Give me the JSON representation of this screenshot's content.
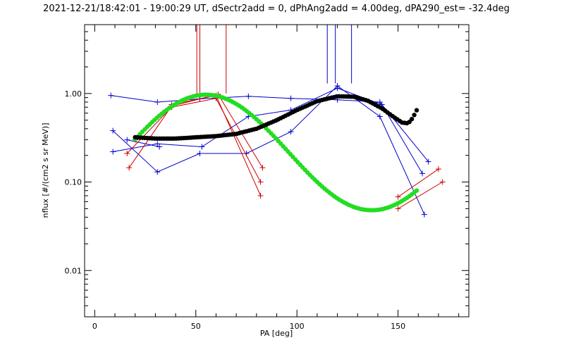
{
  "chart_data": {
    "type": "scatter",
    "title": "2021-12-21/18:42:01 - 19:00:29 UT, dSectr2add = 0, dPhAng2add = 4.00deg, dPA290_est= -32.4deg",
    "xlabel": "PA [deg]",
    "ylabel": "nflux [#/(cm2 s sr MeV)]",
    "xlim": [
      -5,
      185
    ],
    "ylim": [
      0.003,
      6
    ],
    "y_scale": "log",
    "x_ticks": [
      0,
      50,
      100,
      150
    ],
    "x_tick_labels": [
      "0",
      "50",
      "100",
      "150"
    ],
    "y_ticks": [
      0.01,
      0.1,
      1.0
    ],
    "y_tick_labels": [
      "0.01",
      "0.10",
      "1.00"
    ],
    "grid": false,
    "colors": {
      "blue": "#0000cc",
      "red": "#cc0000",
      "green": "#22dd22",
      "black": "#000000"
    },
    "series": [
      {
        "color": "blue",
        "marker": "plus",
        "segments": [
          [
            [
              8,
              0.95
            ],
            [
              31,
              0.8
            ],
            [
              52,
              0.87
            ],
            [
              76,
              0.93
            ],
            [
              97,
              0.88
            ],
            [
              120,
              0.85
            ],
            [
              141,
              0.8
            ],
            [
              165,
              0.17
            ]
          ],
          [
            [
              9,
              0.38
            ],
            [
              31,
              0.13
            ],
            [
              52,
              0.21
            ],
            [
              75,
              0.21
            ],
            [
              97,
              0.37
            ],
            [
              120,
              1.22
            ],
            [
              141,
              0.55
            ],
            [
              163,
              0.043
            ]
          ],
          [
            [
              9,
              0.22
            ],
            [
              31,
              0.27
            ],
            [
              53,
              0.25
            ],
            [
              76,
              0.55
            ],
            [
              97,
              0.65
            ],
            [
              120,
              1.15
            ],
            [
              142,
              0.75
            ],
            [
              162,
              0.125
            ]
          ],
          [
            [
              16,
              0.3
            ],
            [
              32,
              0.25
            ]
          ]
        ]
      },
      {
        "color": "red",
        "marker": "plus",
        "segments": [
          [
            [
              17,
              0.145
            ],
            [
              38,
              0.72
            ],
            [
              61,
              0.98
            ],
            [
              83,
              0.145
            ]
          ],
          [
            [
              16,
              0.21
            ],
            [
              38,
              0.7
            ],
            [
              60,
              0.88
            ],
            [
              82,
              0.1
            ]
          ],
          [
            [
              20,
              0.3
            ],
            [
              38,
              0.75
            ],
            [
              60,
              0.95
            ],
            [
              82,
              0.07
            ]
          ],
          [
            [
              150,
              0.068
            ],
            [
              170,
              0.14
            ]
          ],
          [
            [
              150,
              0.05
            ],
            [
              172,
              0.1
            ]
          ]
        ]
      },
      {
        "color": "vertical-lines",
        "lines": [
          {
            "x": 50.5,
            "color": "red"
          },
          {
            "x": 52,
            "color": "red"
          },
          {
            "x": 65,
            "color": "red"
          },
          {
            "x": 115,
            "color": "blue"
          },
          {
            "x": 119,
            "color": "blue"
          },
          {
            "x": 127,
            "color": "blue"
          }
        ]
      },
      {
        "color": "green",
        "marker": "dot",
        "curve": "sine_fit",
        "x_range": [
          20,
          160
        ],
        "peak": {
          "x": 55,
          "y": 0.97
        },
        "trough": {
          "x": 137,
          "y": 0.048
        }
      },
      {
        "color": "black",
        "marker": "dot",
        "curve": "fit",
        "points": [
          [
            20,
            0.32
          ],
          [
            30,
            0.31
          ],
          [
            40,
            0.31
          ],
          [
            50,
            0.32
          ],
          [
            60,
            0.33
          ],
          [
            70,
            0.35
          ],
          [
            80,
            0.4
          ],
          [
            90,
            0.5
          ],
          [
            100,
            0.65
          ],
          [
            110,
            0.82
          ],
          [
            120,
            0.93
          ],
          [
            128,
            0.92
          ],
          [
            135,
            0.83
          ],
          [
            142,
            0.68
          ],
          [
            148,
            0.54
          ],
          [
            152,
            0.47
          ],
          [
            155,
            0.46
          ],
          [
            157,
            0.52
          ],
          [
            159,
            0.63
          ],
          [
            160,
            0.72
          ]
        ]
      }
    ]
  }
}
